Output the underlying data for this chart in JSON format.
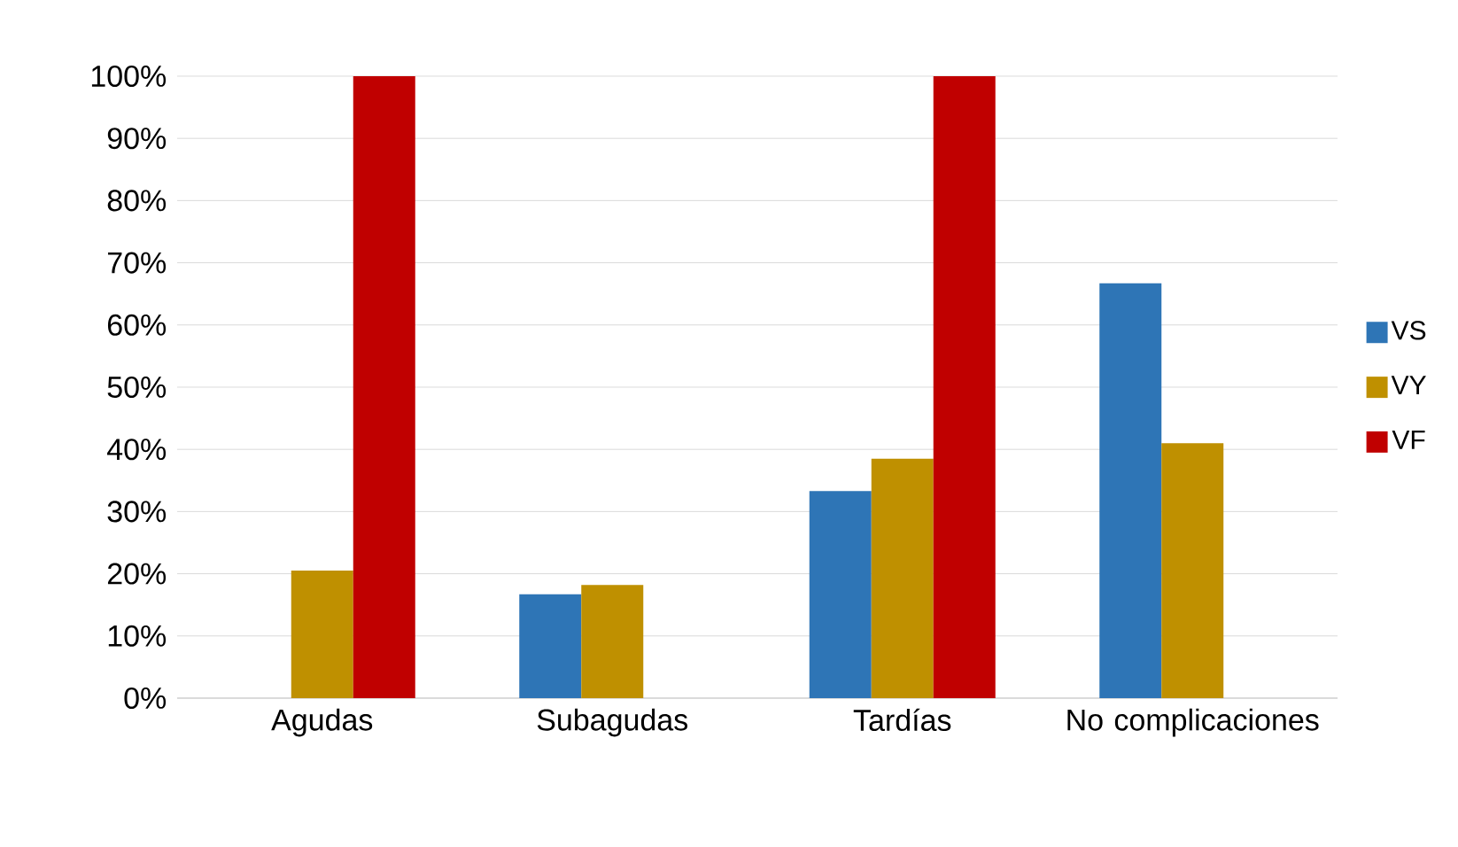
{
  "chart_data": {
    "type": "bar",
    "categories": [
      "Agudas",
      "Subagudas",
      "Tardías",
      "No complicaciones"
    ],
    "series": [
      {
        "name": "VS",
        "color": "#2e75b6",
        "values": [
          0,
          16.7,
          33.3,
          66.7
        ]
      },
      {
        "name": "VY",
        "color": "#bf9000",
        "values": [
          20.5,
          18.2,
          38.5,
          41
        ]
      },
      {
        "name": "VF",
        "color": "#c00000",
        "values": [
          100,
          0,
          100,
          0
        ]
      }
    ],
    "ylim": [
      0,
      100
    ],
    "yticks": [
      {
        "value": 0,
        "label": "0%"
      },
      {
        "value": 10,
        "label": "10%"
      },
      {
        "value": 20,
        "label": "20%"
      },
      {
        "value": 30,
        "label": "30%"
      },
      {
        "value": 40,
        "label": "40%"
      },
      {
        "value": 50,
        "label": "50%"
      },
      {
        "value": 60,
        "label": "60%"
      },
      {
        "value": 70,
        "label": "70%"
      },
      {
        "value": 80,
        "label": "80%"
      },
      {
        "value": 90,
        "label": "90%"
      },
      {
        "value": 100,
        "label": "100%"
      }
    ],
    "grid": "y",
    "legend": "right"
  }
}
